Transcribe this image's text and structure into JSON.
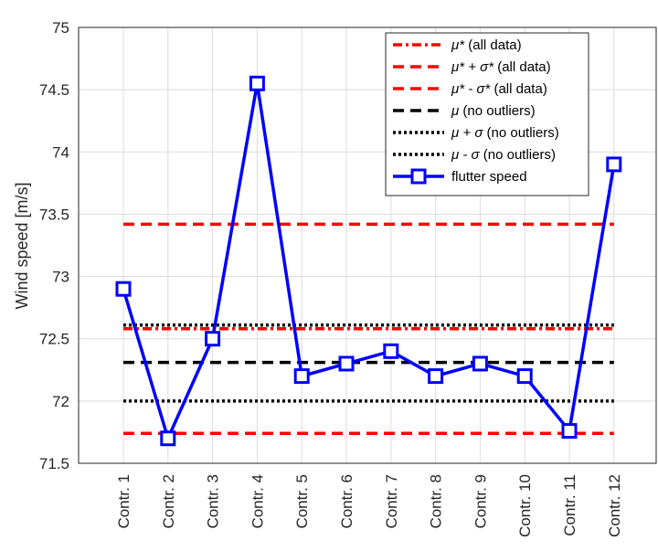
{
  "chart_data": {
    "type": "line",
    "xlabel": "",
    "ylabel": "Wind speed [m/s]",
    "ylim": [
      71.5,
      75
    ],
    "yticks": [
      "71.5",
      "72",
      "72.5",
      "73",
      "73.5",
      "74",
      "74.5",
      "75"
    ],
    "categories": [
      "Contr. 1",
      "Contr. 2",
      "Contr. 3",
      "Contr. 4",
      "Contr. 5",
      "Contr. 6",
      "Contr. 7",
      "Contr. 8",
      "Contr. 9",
      "Contr. 10",
      "Contr. 11",
      "Contr. 12"
    ],
    "grid": true,
    "legend_position": "top-right",
    "series": [
      {
        "name": "flutter speed",
        "color": "#0000ff",
        "style": "solid-square-markers",
        "values": [
          72.9,
          71.7,
          72.5,
          74.55,
          72.2,
          72.3,
          72.4,
          72.2,
          72.3,
          72.2,
          71.76,
          73.9
        ]
      }
    ],
    "reference_lines": [
      {
        "legend_prefix": "μ*",
        "legend_suffix": " (all data)",
        "value": 72.58,
        "color": "#ff0000",
        "style": "dashdot"
      },
      {
        "legend_prefix": "μ* + σ*",
        "legend_suffix": " (all data)",
        "value": 73.42,
        "color": "#ff0000",
        "style": "dashed"
      },
      {
        "legend_prefix": "μ* - σ*",
        "legend_suffix": " (all data)",
        "value": 71.74,
        "color": "#ff0000",
        "style": "dashed"
      },
      {
        "legend_prefix": "μ",
        "legend_suffix": " (no outliers)",
        "value": 72.31,
        "color": "#000000",
        "style": "dashed"
      },
      {
        "legend_prefix": "μ + σ",
        "legend_suffix": " (no outliers)",
        "value": 72.61,
        "color": "#000000",
        "style": "dotted"
      },
      {
        "legend_prefix": "μ - σ",
        "legend_suffix": "  (no outliers)",
        "value": 72.0,
        "color": "#000000",
        "style": "dotted"
      }
    ]
  }
}
